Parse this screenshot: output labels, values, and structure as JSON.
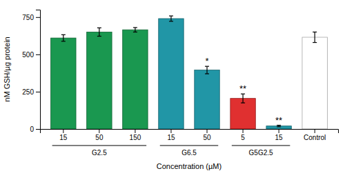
{
  "chart_data": {
    "type": "bar",
    "categories": [
      "15",
      "50",
      "150",
      "15",
      "50",
      "5",
      "15",
      "Control"
    ],
    "values": [
      610,
      650,
      665,
      740,
      395,
      205,
      20,
      615
    ],
    "errors": [
      22,
      28,
      15,
      18,
      25,
      30,
      5,
      35
    ],
    "colors": [
      "#1a9850",
      "#1a9850",
      "#1a9850",
      "#2196a6",
      "#2196a6",
      "#e03030",
      "#2196a6",
      "#ffffff"
    ],
    "annotations": [
      null,
      null,
      null,
      null,
      "*",
      "**",
      "**",
      null
    ],
    "groups": [
      {
        "label": "G2.5",
        "span": [
          0,
          2
        ]
      },
      {
        "label": "G6.5",
        "span": [
          3,
          4
        ]
      },
      {
        "label": "G5G2.5",
        "span": [
          5,
          6
        ]
      }
    ],
    "xlabel": "Concentration (µM)",
    "ylabel": "nM GSH/µg protein",
    "ylim": [
      0,
      800
    ],
    "yticks": [
      0,
      250,
      500,
      750
    ],
    "grid": false
  }
}
